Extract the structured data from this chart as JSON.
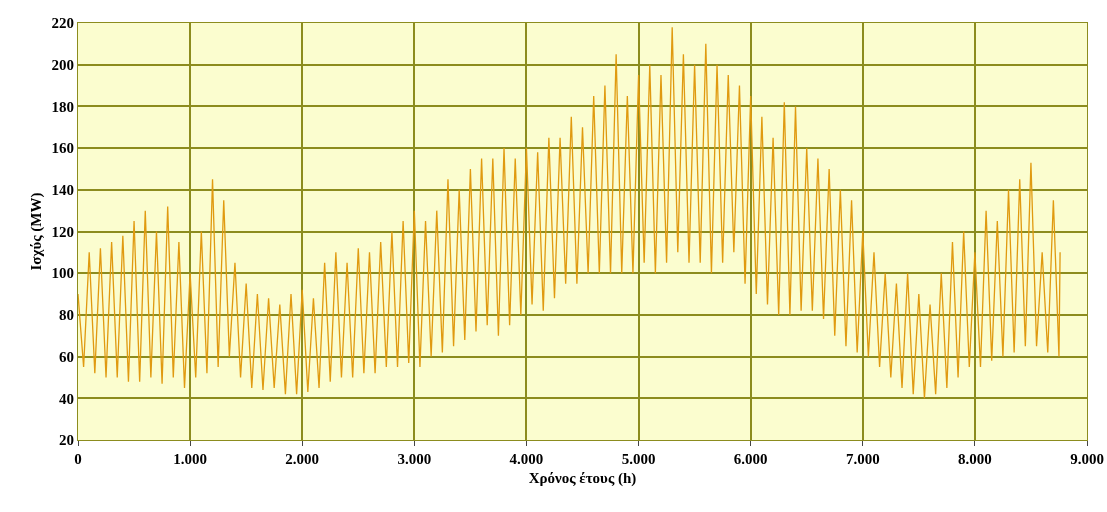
{
  "chart_data": {
    "type": "line",
    "xlabel": "Χρόνος έτους (h)",
    "ylabel": "Ισχύς (MW)",
    "xlim": [
      0,
      9000
    ],
    "xticks": [
      0,
      {
        "value": 1000,
        "label": "1.000"
      },
      {
        "value": 2000,
        "label": "2.000"
      },
      {
        "value": 3000,
        "label": "3.000"
      },
      {
        "value": 4000,
        "label": "4.000"
      },
      {
        "value": 5000,
        "label": "5.000"
      },
      {
        "value": 6000,
        "label": "6.000"
      },
      {
        "value": 7000,
        "label": "7.000"
      },
      {
        "value": 8000,
        "label": "8.000"
      },
      {
        "value": 9000,
        "label": "9.000"
      }
    ],
    "ylim": [
      20,
      220
    ],
    "yticks": [
      20,
      40,
      60,
      80,
      100,
      120,
      140,
      160,
      180,
      200,
      220
    ],
    "grid": true,
    "marker": "none",
    "line_style": "solid",
    "series": [
      {
        "color": "#e09a10",
        "x": [
          0,
          50,
          100,
          150,
          200,
          250,
          300,
          350,
          400,
          450,
          500,
          550,
          600,
          650,
          700,
          750,
          800,
          850,
          900,
          950,
          1000,
          1050,
          1100,
          1150,
          1200,
          1250,
          1300,
          1350,
          1400,
          1450,
          1500,
          1550,
          1600,
          1650,
          1700,
          1750,
          1800,
          1850,
          1900,
          1950,
          2000,
          2050,
          2100,
          2150,
          2200,
          2250,
          2300,
          2350,
          2400,
          2450,
          2500,
          2550,
          2600,
          2650,
          2700,
          2750,
          2800,
          2850,
          2900,
          2950,
          3000,
          3050,
          3100,
          3150,
          3200,
          3250,
          3300,
          3350,
          3400,
          3450,
          3500,
          3550,
          3600,
          3650,
          3700,
          3750,
          3800,
          3850,
          3900,
          3950,
          4000,
          4050,
          4100,
          4150,
          4200,
          4250,
          4300,
          4350,
          4400,
          4450,
          4500,
          4550,
          4600,
          4650,
          4700,
          4750,
          4800,
          4850,
          4900,
          4950,
          5000,
          5050,
          5100,
          5150,
          5200,
          5250,
          5300,
          5350,
          5400,
          5450,
          5500,
          5550,
          5600,
          5650,
          5700,
          5750,
          5800,
          5850,
          5900,
          5950,
          6000,
          6050,
          6100,
          6150,
          6200,
          6250,
          6300,
          6350,
          6400,
          6450,
          6500,
          6550,
          6600,
          6650,
          6700,
          6750,
          6800,
          6850,
          6900,
          6950,
          7000,
          7050,
          7100,
          7150,
          7200,
          7250,
          7300,
          7350,
          7400,
          7450,
          7500,
          7550,
          7600,
          7650,
          7700,
          7750,
          7800,
          7850,
          7900,
          7950,
          8000,
          8050,
          8100,
          8150,
          8200,
          8250,
          8300,
          8350,
          8400,
          8450,
          8500,
          8550,
          8600,
          8650,
          8700,
          8750,
          8760
        ],
        "values": [
          90,
          55,
          110,
          52,
          112,
          50,
          115,
          50,
          118,
          48,
          125,
          48,
          130,
          50,
          120,
          47,
          132,
          50,
          115,
          45,
          100,
          50,
          120,
          52,
          145,
          55,
          135,
          60,
          105,
          50,
          95,
          45,
          90,
          44,
          88,
          45,
          85,
          42,
          90,
          42,
          92,
          43,
          88,
          45,
          105,
          48,
          110,
          50,
          105,
          50,
          112,
          52,
          110,
          52,
          115,
          55,
          120,
          55,
          125,
          57,
          130,
          55,
          125,
          60,
          130,
          62,
          145,
          65,
          140,
          68,
          150,
          72,
          155,
          75,
          155,
          70,
          160,
          75,
          155,
          80,
          160,
          85,
          158,
          82,
          165,
          88,
          165,
          95,
          175,
          95,
          170,
          100,
          185,
          100,
          190,
          100,
          205,
          100,
          185,
          100,
          195,
          105,
          200,
          100,
          195,
          105,
          218,
          110,
          205,
          105,
          200,
          105,
          210,
          100,
          200,
          105,
          195,
          110,
          190,
          95,
          185,
          90,
          175,
          85,
          165,
          80,
          182,
          80,
          180,
          82,
          160,
          82,
          155,
          78,
          150,
          70,
          140,
          65,
          135,
          62,
          120,
          60,
          110,
          55,
          100,
          50,
          95,
          45,
          100,
          42,
          90,
          40,
          85,
          42,
          100,
          45,
          115,
          50,
          120,
          55,
          110,
          55,
          130,
          58,
          125,
          60,
          140,
          62,
          145,
          65,
          153,
          65,
          110,
          62,
          135,
          60,
          110
        ]
      }
    ]
  }
}
